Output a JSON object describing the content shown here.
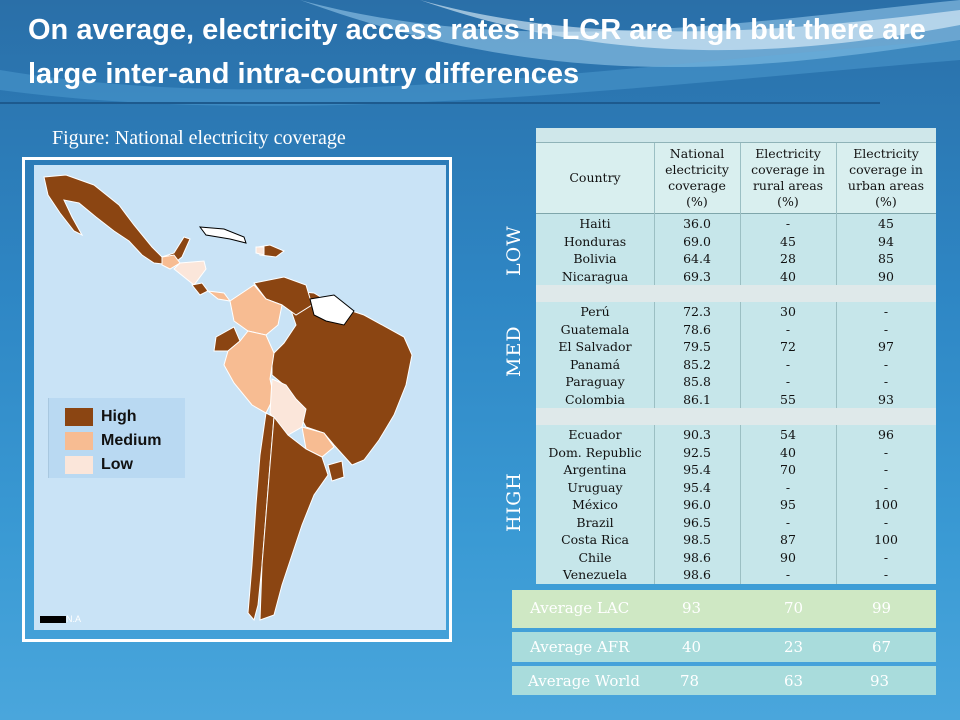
{
  "title": "On average, electricity access rates in LCR are high but there are large inter-and intra-country differences",
  "figure_caption": "Figure: National electricity coverage",
  "legend": {
    "items": [
      {
        "label": "High",
        "color": "#8b4512"
      },
      {
        "label": "Medium",
        "color": "#f7bc92"
      },
      {
        "label": "Low",
        "color": "#fbe6da"
      }
    ],
    "na_label": "N.A"
  },
  "table": {
    "headers": {
      "country": "Country",
      "national": [
        "National",
        "electricity",
        "coverage",
        "(%)"
      ],
      "rural": [
        "Electricity",
        "coverage in",
        "rural areas",
        "(%)"
      ],
      "urban": [
        "Electricity",
        "coverage in",
        "urban areas",
        "(%)"
      ]
    },
    "groups": {
      "low": {
        "label": "LOW",
        "rows": [
          {
            "country": "Haiti",
            "national": "36.0",
            "rural": "-",
            "urban": "45"
          },
          {
            "country": "Honduras",
            "national": "69.0",
            "rural": "45",
            "urban": "94"
          },
          {
            "country": "Bolivia",
            "national": "64.4",
            "rural": "28",
            "urban": "85"
          },
          {
            "country": "Nicaragua",
            "national": "69.3",
            "rural": "40",
            "urban": "90"
          }
        ]
      },
      "med": {
        "label": "MED",
        "rows": [
          {
            "country": "Perú",
            "national": "72.3",
            "rural": "30",
            "urban": "-"
          },
          {
            "country": "Guatemala",
            "national": "78.6",
            "rural": "-",
            "urban": "-"
          },
          {
            "country": "El Salvador",
            "national": "79.5",
            "rural": "72",
            "urban": "97"
          },
          {
            "country": "Panamá",
            "national": "85.2",
            "rural": "-",
            "urban": "-"
          },
          {
            "country": "Paraguay",
            "national": "85.8",
            "rural": "-",
            "urban": "-"
          },
          {
            "country": "Colombia",
            "national": "86.1",
            "rural": "55",
            "urban": "93"
          }
        ]
      },
      "high": {
        "label": "HIGH",
        "rows": [
          {
            "country": "Ecuador",
            "national": "90.3",
            "rural": "54",
            "urban": "96"
          },
          {
            "country": "Dom. Republic",
            "national": "92.5",
            "rural": "40",
            "urban": "-"
          },
          {
            "country": "Argentina",
            "national": "95.4",
            "rural": "70",
            "urban": "-"
          },
          {
            "country": "Uruguay",
            "national": "95.4",
            "rural": "-",
            "urban": "-"
          },
          {
            "country": "México",
            "national": "96.0",
            "rural": "95",
            "urban": "100"
          },
          {
            "country": "Brazil",
            "national": "96.5",
            "rural": "-",
            "urban": "-"
          },
          {
            "country": "Costa Rica",
            "national": "98.5",
            "rural": "87",
            "urban": "100"
          },
          {
            "country": "Chile",
            "national": "98.6",
            "rural": "90",
            "urban": "-"
          },
          {
            "country": "Venezuela",
            "national": "98.6",
            "rural": "-",
            "urban": "-"
          }
        ]
      }
    }
  },
  "averages": [
    {
      "label": "Average LAC",
      "national": "93",
      "rural": "70",
      "urban": "99",
      "color": "#cfe8c4"
    },
    {
      "label": "Average AFR",
      "national": "40",
      "rural": "23",
      "urban": "67",
      "color": "#a9dcdc"
    },
    {
      "label": "Average World",
      "national": "78",
      "rural": "63",
      "urban": "93",
      "color": "#a9dcdc"
    }
  ]
}
